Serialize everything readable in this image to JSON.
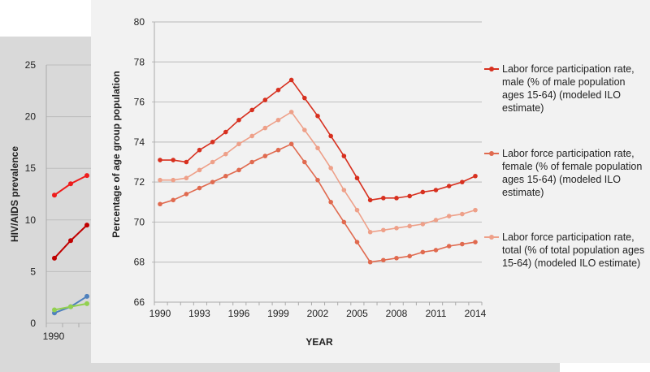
{
  "chart_data": [
    {
      "type": "line",
      "title": "",
      "ylabel": "HIV/AIDS prevalence",
      "xlabel": "",
      "ylim": [
        0,
        25
      ],
      "yticks": [
        0,
        5,
        10,
        15,
        20,
        25
      ],
      "xtick_labels": [
        "1990"
      ],
      "x": [
        1990,
        1991,
        1992
      ],
      "series": [
        {
          "name": "series-red",
          "color": "#ee1c1c",
          "values": [
            12.4,
            13.5,
            14.3
          ]
        },
        {
          "name": "series-darkred",
          "color": "#c00000",
          "values": [
            6.3,
            8.0,
            9.5
          ]
        },
        {
          "name": "series-blue",
          "color": "#4f81bd",
          "values": [
            1.0,
            1.6,
            2.6
          ]
        },
        {
          "name": "series-green",
          "color": "#92d050",
          "values": [
            1.3,
            1.6,
            1.9
          ]
        }
      ]
    },
    {
      "type": "line",
      "title": "",
      "xlabel": "YEAR",
      "ylabel": "Percentage of age group population",
      "ylim": [
        66,
        80
      ],
      "yticks": [
        66,
        68,
        70,
        72,
        74,
        76,
        78,
        80
      ],
      "xtick_labels": [
        "1990",
        "1993",
        "1996",
        "1999",
        "2002",
        "2005",
        "2008",
        "2011",
        "2014"
      ],
      "x": [
        1990,
        1991,
        1992,
        1993,
        1994,
        1995,
        1996,
        1997,
        1998,
        1999,
        2000,
        2001,
        2002,
        2003,
        2004,
        2005,
        2006,
        2007,
        2008,
        2009,
        2010,
        2011,
        2012,
        2013,
        2014
      ],
      "legend_position": "right",
      "series": [
        {
          "name": "Labor force participation rate, male (% of male population ages 15-64) (modeled ILO estimate)",
          "color": "#d7301f",
          "values": [
            73.1,
            73.1,
            73.0,
            73.6,
            74.0,
            74.5,
            75.1,
            75.6,
            76.1,
            76.6,
            77.1,
            76.2,
            75.3,
            74.3,
            73.3,
            72.2,
            71.1,
            71.2,
            71.2,
            71.3,
            71.5,
            71.6,
            71.8,
            72.0,
            72.3
          ]
        },
        {
          "name": "Labor force participation rate, female (% of female population ages 15-64) (modeled ILO estimate)",
          "color": "#e06a4f",
          "values": [
            70.9,
            71.1,
            71.4,
            71.7,
            72.0,
            72.3,
            72.6,
            73.0,
            73.3,
            73.6,
            73.9,
            73.0,
            72.1,
            71.0,
            70.0,
            69.0,
            68.0,
            68.1,
            68.2,
            68.3,
            68.5,
            68.6,
            68.8,
            68.9,
            69.0
          ]
        },
        {
          "name": "Labor force participation rate, total (% of total population ages 15-64) (modeled ILO estimate)",
          "color": "#eea089",
          "values": [
            72.1,
            72.1,
            72.2,
            72.6,
            73.0,
            73.4,
            73.9,
            74.3,
            74.7,
            75.1,
            75.5,
            74.6,
            73.7,
            72.7,
            71.6,
            70.6,
            69.5,
            69.6,
            69.7,
            69.8,
            69.9,
            70.1,
            70.3,
            70.4,
            70.6
          ]
        }
      ]
    }
  ]
}
